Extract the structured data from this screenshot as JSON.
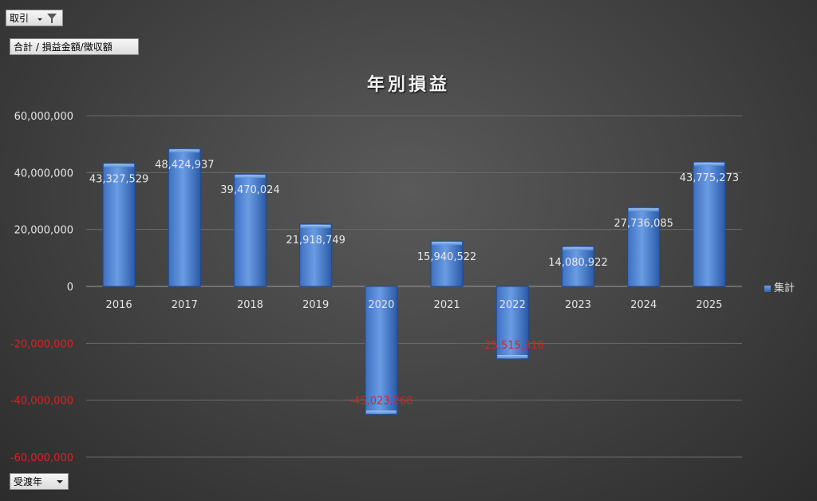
{
  "pivot_buttons": {
    "filter_label": "取引",
    "value_label": "合計 / 損益金額/徴収額",
    "axis_label": "受渡年"
  },
  "colors": {
    "bar_top": "#74a6ea",
    "bar_bottom": "#2a5db0",
    "negative_label": "#e02020",
    "positive_label": "#e8e8e8"
  },
  "chart_data": {
    "type": "bar",
    "title": "年別損益",
    "categories": [
      "2016",
      "2017",
      "2018",
      "2019",
      "2020",
      "2021",
      "2022",
      "2023",
      "2024",
      "2025"
    ],
    "series": [
      {
        "name": "集計",
        "values": [
          43327529,
          48424937,
          39470024,
          21918749,
          -45023268,
          15940522,
          -25515316,
          14080922,
          27736085,
          43775273
        ]
      }
    ],
    "data_labels": [
      "43,327,529",
      "48,424,937",
      "39,470,024",
      "21,918,749",
      "-45,023,268",
      "15,940,522",
      "-25,515,316",
      "14,080,922",
      "27,736,085",
      "43,775,273"
    ],
    "ylim": [
      -60000000,
      60000000
    ],
    "yticks": [
      60000000,
      40000000,
      20000000,
      0,
      -20000000,
      -40000000,
      -60000000
    ],
    "ytick_labels": [
      "60,000,000",
      "40,000,000",
      "20,000,000",
      "0",
      "-20,000,000",
      "-40,000,000",
      "-60,000,000"
    ],
    "grid": true,
    "legend_position": "right"
  }
}
